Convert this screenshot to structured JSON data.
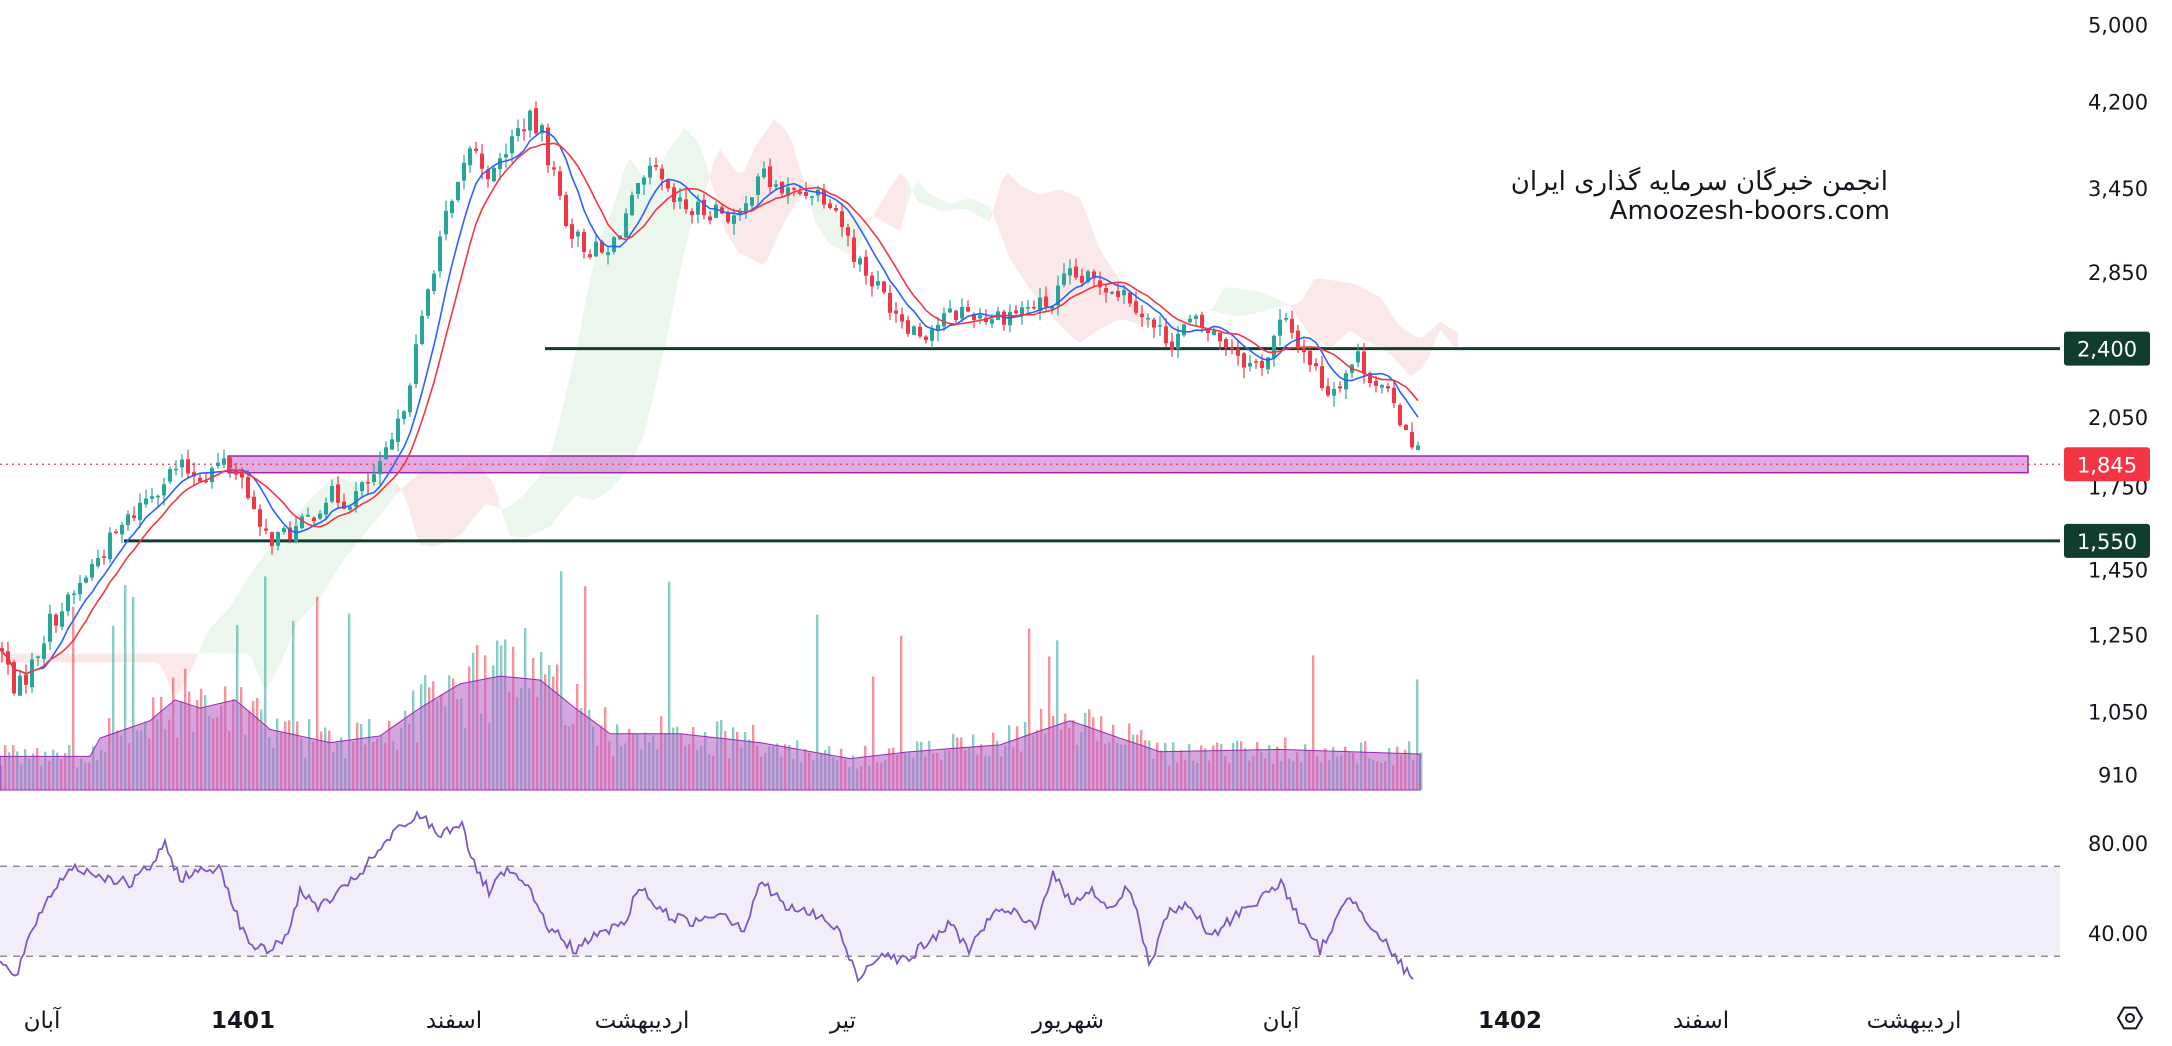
{
  "chart_data": {
    "type": "candlestick",
    "watermark": {
      "line1": "انجمن خبرگان سرمایه گذاری ایران",
      "line2": "Amoozesh-boors.com"
    },
    "price_axis": {
      "scale": "log",
      "range": [
        880,
        5300
      ],
      "ticks": [
        "5,000",
        "4,200",
        "3,450",
        "2,850",
        "2,400",
        "2,050",
        "1,750",
        "1,450",
        "1,250",
        "1,050",
        "910"
      ]
    },
    "current_price": {
      "value": 1845,
      "label": "1,845",
      "color": "#f23645"
    },
    "levels": [
      {
        "name": "resistance",
        "value": 2400,
        "label": "2,400",
        "color": "#0f3d2e"
      },
      {
        "name": "support",
        "value": 1550,
        "label": "1,550",
        "color": "#0f3d2e"
      }
    ],
    "zone": {
      "low": 1810,
      "high": 1880,
      "color": "#cc66cc"
    },
    "time_axis": {
      "labels": [
        {
          "text": "آبان",
          "bold": false
        },
        {
          "text": "1401",
          "bold": true
        },
        {
          "text": "اسفند",
          "bold": false
        },
        {
          "text": "اردیبهشت",
          "bold": false
        },
        {
          "text": "تیر",
          "bold": false
        },
        {
          "text": "شهریور",
          "bold": false
        },
        {
          "text": "آبان",
          "bold": false
        },
        {
          "text": "1402",
          "bold": true
        },
        {
          "text": "اسفند",
          "bold": false
        },
        {
          "text": "اردیبهشت",
          "bold": false
        }
      ]
    },
    "close_keypoints": [
      [
        0,
        1200
      ],
      [
        15,
        1100
      ],
      [
        30,
        1170
      ],
      [
        48,
        1290
      ],
      [
        70,
        1360
      ],
      [
        95,
        1490
      ],
      [
        125,
        1620
      ],
      [
        150,
        1740
      ],
      [
        175,
        1830
      ],
      [
        200,
        1800
      ],
      [
        225,
        1860
      ],
      [
        245,
        1760
      ],
      [
        258,
        1570
      ],
      [
        275,
        1560
      ],
      [
        300,
        1600
      ],
      [
        325,
        1720
      ],
      [
        345,
        1700
      ],
      [
        360,
        1740
      ],
      [
        378,
        1820
      ],
      [
        395,
        1980
      ],
      [
        410,
        2300
      ],
      [
        418,
        2480
      ],
      [
        428,
        2800
      ],
      [
        440,
        3150
      ],
      [
        455,
        3400
      ],
      [
        468,
        3800
      ],
      [
        480,
        3650
      ],
      [
        492,
        3550
      ],
      [
        505,
        3800
      ],
      [
        515,
        3920
      ],
      [
        525,
        4050
      ],
      [
        540,
        3900
      ],
      [
        552,
        3550
      ],
      [
        565,
        3200
      ],
      [
        578,
        3050
      ],
      [
        592,
        3000
      ],
      [
        605,
        2950
      ],
      [
        620,
        3200
      ],
      [
        635,
        3400
      ],
      [
        652,
        3600
      ],
      [
        668,
        3350
      ],
      [
        690,
        3280
      ],
      [
        715,
        3300
      ],
      [
        740,
        3200
      ],
      [
        755,
        3600
      ],
      [
        770,
        3480
      ],
      [
        790,
        3400
      ],
      [
        810,
        3450
      ],
      [
        830,
        3380
      ],
      [
        850,
        3000
      ],
      [
        870,
        2800
      ],
      [
        890,
        2650
      ],
      [
        905,
        2550
      ],
      [
        920,
        2480
      ],
      [
        940,
        2560
      ],
      [
        960,
        2620
      ],
      [
        985,
        2580
      ],
      [
        1005,
        2600
      ],
      [
        1030,
        2640
      ],
      [
        1050,
        2660
      ],
      [
        1065,
        2820
      ],
      [
        1085,
        2800
      ],
      [
        1105,
        2780
      ],
      [
        1130,
        2700
      ],
      [
        1150,
        2520
      ],
      [
        1170,
        2450
      ],
      [
        1190,
        2550
      ],
      [
        1210,
        2480
      ],
      [
        1230,
        2420
      ],
      [
        1250,
        2300
      ],
      [
        1265,
        2350
      ],
      [
        1280,
        2560
      ],
      [
        1295,
        2450
      ],
      [
        1310,
        2320
      ],
      [
        1325,
        2180
      ],
      [
        1340,
        2250
      ],
      [
        1355,
        2360
      ],
      [
        1370,
        2250
      ],
      [
        1385,
        2150
      ],
      [
        1400,
        2040
      ],
      [
        1410,
        1960
      ],
      [
        1420,
        1845
      ]
    ],
    "volume_avg_keypoints": [
      [
        0,
        950
      ],
      [
        90,
        950
      ],
      [
        100,
        990
      ],
      [
        150,
        1030
      ],
      [
        175,
        1080
      ],
      [
        200,
        1060
      ],
      [
        235,
        1080
      ],
      [
        270,
        1010
      ],
      [
        330,
        980
      ],
      [
        380,
        995
      ],
      [
        420,
        1060
      ],
      [
        460,
        1120
      ],
      [
        500,
        1140
      ],
      [
        540,
        1130
      ],
      [
        575,
        1060
      ],
      [
        610,
        1000
      ],
      [
        680,
        1000
      ],
      [
        760,
        980
      ],
      [
        850,
        945
      ],
      [
        910,
        960
      ],
      [
        1000,
        975
      ],
      [
        1070,
        1030
      ],
      [
        1120,
        990
      ],
      [
        1160,
        960
      ],
      [
        1280,
        965
      ],
      [
        1420,
        955
      ]
    ],
    "rsi": {
      "range": [
        15,
        95
      ],
      "ticks": [
        "80.00",
        "40.00"
      ],
      "upper": 70,
      "lower": 30,
      "color": "#7e57c2",
      "band_color": "#7e57c2",
      "keypoints": [
        [
          0,
          28
        ],
        [
          15,
          20
        ],
        [
          40,
          50
        ],
        [
          70,
          70
        ],
        [
          100,
          66
        ],
        [
          130,
          62
        ],
        [
          150,
          70
        ],
        [
          165,
          79
        ],
        [
          180,
          65
        ],
        [
          220,
          70
        ],
        [
          245,
          38
        ],
        [
          265,
          32
        ],
        [
          285,
          38
        ],
        [
          300,
          58
        ],
        [
          320,
          52
        ],
        [
          345,
          60
        ],
        [
          370,
          72
        ],
        [
          395,
          85
        ],
        [
          420,
          93
        ],
        [
          440,
          84
        ],
        [
          462,
          90
        ],
        [
          472,
          72
        ],
        [
          490,
          58
        ],
        [
          505,
          68
        ],
        [
          525,
          62
        ],
        [
          550,
          42
        ],
        [
          575,
          33
        ],
        [
          600,
          40
        ],
        [
          625,
          45
        ],
        [
          640,
          62
        ],
        [
          660,
          50
        ],
        [
          690,
          45
        ],
        [
          720,
          50
        ],
        [
          745,
          42
        ],
        [
          760,
          64
        ],
        [
          785,
          52
        ],
        [
          820,
          48
        ],
        [
          840,
          40
        ],
        [
          858,
          20
        ],
        [
          880,
          32
        ],
        [
          905,
          28
        ],
        [
          925,
          35
        ],
        [
          950,
          44
        ],
        [
          970,
          33
        ],
        [
          990,
          48
        ],
        [
          1010,
          50
        ],
        [
          1035,
          43
        ],
        [
          1052,
          67
        ],
        [
          1070,
          54
        ],
        [
          1090,
          60
        ],
        [
          1110,
          50
        ],
        [
          1130,
          62
        ],
        [
          1150,
          25
        ],
        [
          1165,
          48
        ],
        [
          1190,
          53
        ],
        [
          1210,
          38
        ],
        [
          1240,
          50
        ],
        [
          1262,
          56
        ],
        [
          1282,
          63
        ],
        [
          1300,
          45
        ],
        [
          1320,
          33
        ],
        [
          1350,
          57
        ],
        [
          1375,
          42
        ],
        [
          1400,
          27
        ],
        [
          1415,
          17
        ]
      ]
    },
    "colors": {
      "up": "#26a69a",
      "down": "#f23645",
      "ma_fast": "#2962ff",
      "ma_slow": "#f23645",
      "cloud_up": "#a5d6a7",
      "cloud_down": "#ef9a9a",
      "volume_avg_fill": "#ba68c8"
    }
  }
}
